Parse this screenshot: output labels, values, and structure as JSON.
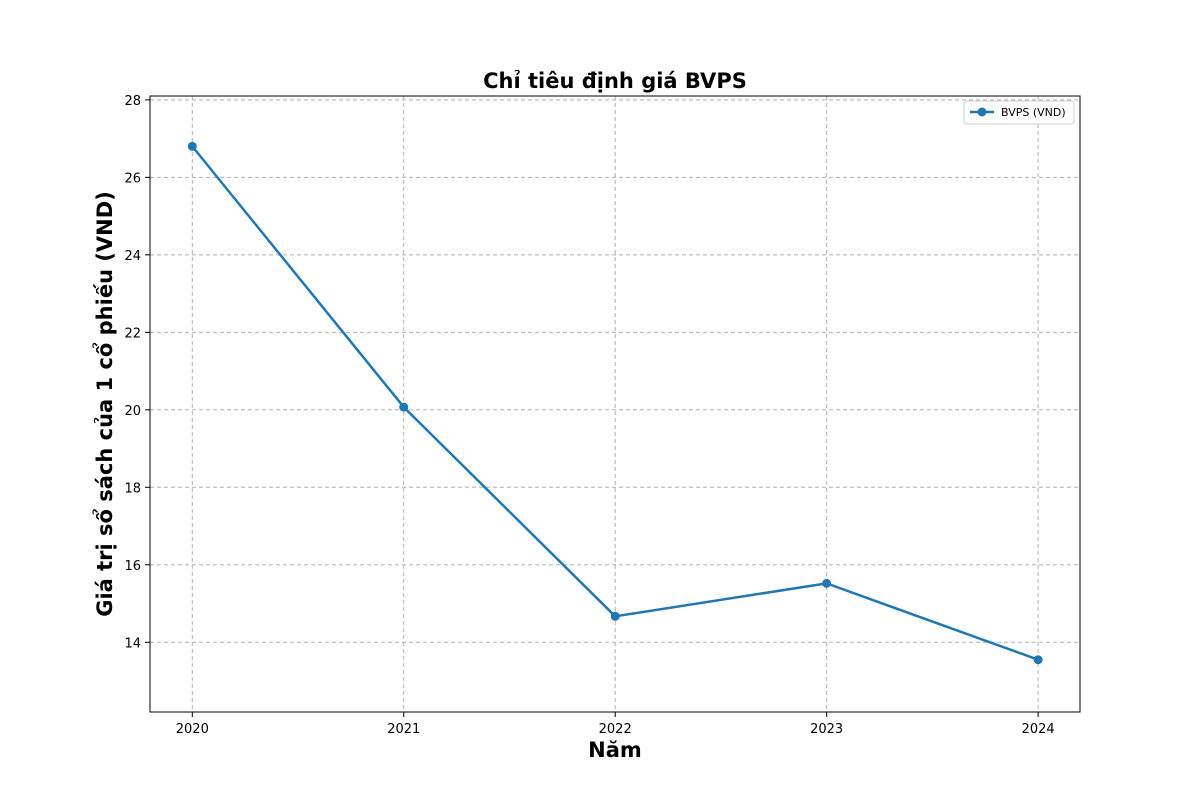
{
  "chart_data": {
    "type": "line",
    "title": "Chỉ tiêu định giá BVPS",
    "xlabel": "Năm",
    "ylabel": "Giá trị sổ sách của 1 cổ phiếu (VND)",
    "categories": [
      "2020",
      "2021",
      "2022",
      "2023",
      "2024"
    ],
    "series": [
      {
        "name": "BVPS (VND)",
        "values": [
          26.8,
          20.07,
          14.67,
          15.52,
          13.55
        ],
        "color": "#1f77b4"
      }
    ],
    "ylim": [
      12.2,
      28.1
    ],
    "yticks": [
      14,
      16,
      18,
      20,
      22,
      24,
      26,
      28
    ],
    "ytick_labels": [
      "14",
      "16",
      "18",
      "20",
      "22",
      "24",
      "26",
      "28"
    ],
    "grid": true,
    "legend": "top-right",
    "marker": "circle"
  }
}
